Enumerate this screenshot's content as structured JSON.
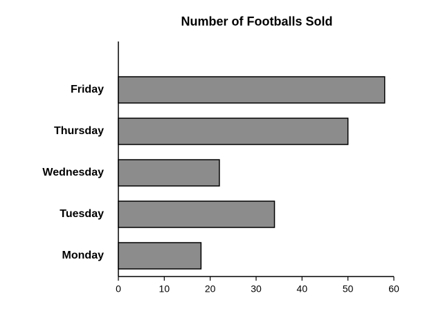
{
  "chart_data": {
    "type": "bar",
    "orientation": "horizontal",
    "title": "Number of Footballs Sold",
    "categories": [
      "Friday",
      "Thursday",
      "Wednesday",
      "Tuesday",
      "Monday"
    ],
    "values": [
      58,
      50,
      22,
      34,
      18
    ],
    "color": "#8c8c8c",
    "xlim": [
      0,
      60
    ],
    "xticks": [
      0,
      10,
      20,
      30,
      40,
      50,
      60
    ],
    "grid": false
  }
}
